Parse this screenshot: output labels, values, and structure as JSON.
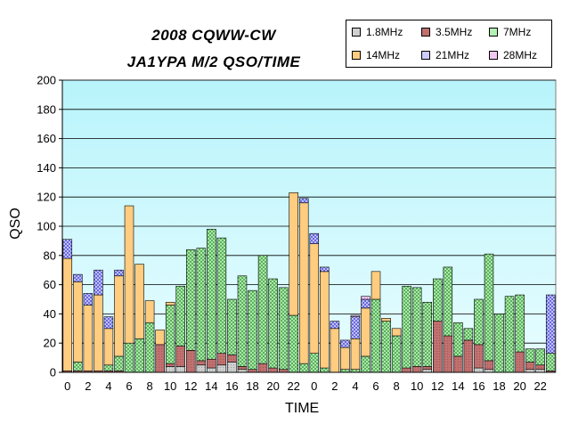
{
  "chart_data": {
    "type": "bar",
    "stacked": true,
    "title": "2008 CQWW-CW",
    "subtitle": "JA1YPA M/2  QSO/TIME",
    "xlabel": "TIME",
    "ylabel": "QSO",
    "ylim": [
      0,
      200
    ],
    "yticks": [
      0,
      20,
      40,
      60,
      80,
      100,
      120,
      140,
      160,
      180,
      200
    ],
    "grid": true,
    "legend_position": "top-right",
    "plot_background": "#ccffff",
    "categories": [
      "0",
      "1",
      "2",
      "3",
      "4",
      "5",
      "6",
      "7",
      "8",
      "9",
      "10",
      "11",
      "12",
      "13",
      "14",
      "15",
      "16",
      "17",
      "18",
      "19",
      "20",
      "21",
      "22",
      "23",
      "0",
      "1",
      "2",
      "3",
      "4",
      "5",
      "6",
      "7",
      "8",
      "9",
      "10",
      "11",
      "12",
      "13",
      "14",
      "15",
      "16",
      "17",
      "18",
      "19",
      "20",
      "21",
      "22",
      "23"
    ],
    "tick_labels": [
      "0",
      "",
      "2",
      "",
      "4",
      "",
      "6",
      "",
      "8",
      "",
      "10",
      "",
      "12",
      "",
      "14",
      "",
      "16",
      "",
      "18",
      "",
      "20",
      "",
      "22",
      "",
      "0",
      "",
      "2",
      "",
      "4",
      "",
      "6",
      "",
      "8",
      "",
      "10",
      "",
      "12",
      "",
      "14",
      "",
      "16",
      "",
      "18",
      "",
      "20",
      "",
      "22",
      ""
    ],
    "series": [
      {
        "name": "1.8MHz",
        "color": "#c0c0c0",
        "values": [
          0,
          0,
          0,
          0,
          0,
          0,
          0,
          0,
          0,
          0,
          4,
          4,
          0,
          5,
          3,
          5,
          7,
          2,
          0,
          0,
          0,
          0,
          0,
          0,
          0,
          0,
          0,
          0,
          0,
          0,
          0,
          0,
          0,
          0,
          0,
          2,
          0,
          0,
          0,
          0,
          3,
          2,
          0,
          0,
          0,
          2,
          2,
          0
        ]
      },
      {
        "name": "3.5MHz",
        "color": "#c0706f",
        "values": [
          1,
          1,
          1,
          1,
          1,
          1,
          0,
          0,
          0,
          19,
          2,
          14,
          15,
          3,
          6,
          8,
          5,
          2,
          2,
          6,
          3,
          2,
          0,
          0,
          0,
          0,
          0,
          0,
          0,
          0,
          0,
          0,
          0,
          3,
          4,
          2,
          35,
          25,
          11,
          22,
          16,
          6,
          0,
          0,
          14,
          5,
          3,
          1
        ]
      },
      {
        "name": "7MHz",
        "color": "#b3f0b3",
        "values": [
          0,
          6,
          0,
          0,
          4,
          10,
          20,
          23,
          34,
          0,
          40,
          41,
          69,
          77,
          89,
          79,
          38,
          62,
          54,
          74,
          61,
          56,
          39,
          6,
          13,
          3,
          0,
          2,
          2,
          11,
          50,
          35,
          25,
          56,
          54,
          44,
          29,
          47,
          23,
          8,
          31,
          73,
          40,
          52,
          39,
          9,
          11,
          12
        ]
      },
      {
        "name": "14MHz",
        "color": "#ffcc80",
        "values": [
          77,
          55,
          45,
          52,
          25,
          55,
          94,
          51,
          15,
          10,
          2,
          0,
          0,
          0,
          0,
          0,
          0,
          0,
          0,
          0,
          0,
          0,
          84,
          110,
          75,
          66,
          30,
          15,
          21,
          33,
          19,
          2,
          5,
          0,
          0,
          0,
          0,
          0,
          0,
          0,
          0,
          0,
          0,
          0,
          0,
          0,
          0,
          0
        ]
      },
      {
        "name": "21MHz",
        "color": "#9999ff",
        "values": [
          13,
          5,
          8,
          17,
          8,
          4,
          0,
          0,
          0,
          0,
          0,
          0,
          0,
          0,
          0,
          0,
          0,
          0,
          0,
          0,
          0,
          0,
          0,
          3,
          7,
          3,
          5,
          5,
          15,
          6,
          0,
          0,
          0,
          0,
          0,
          0,
          0,
          0,
          0,
          0,
          0,
          0,
          0,
          0,
          0,
          0,
          0,
          40
        ]
      },
      {
        "name": "28MHz",
        "color": "#e6b3e6",
        "values": [
          0,
          0,
          0,
          0,
          0,
          0,
          0,
          0,
          0,
          0,
          0,
          0,
          0,
          0,
          0,
          0,
          0,
          0,
          0,
          0,
          0,
          0,
          0,
          0,
          0,
          0,
          0,
          0,
          1,
          2,
          0,
          0,
          0,
          0,
          0,
          0,
          0,
          0,
          0,
          0,
          0,
          0,
          0,
          0,
          0,
          0,
          0,
          0
        ]
      }
    ]
  }
}
